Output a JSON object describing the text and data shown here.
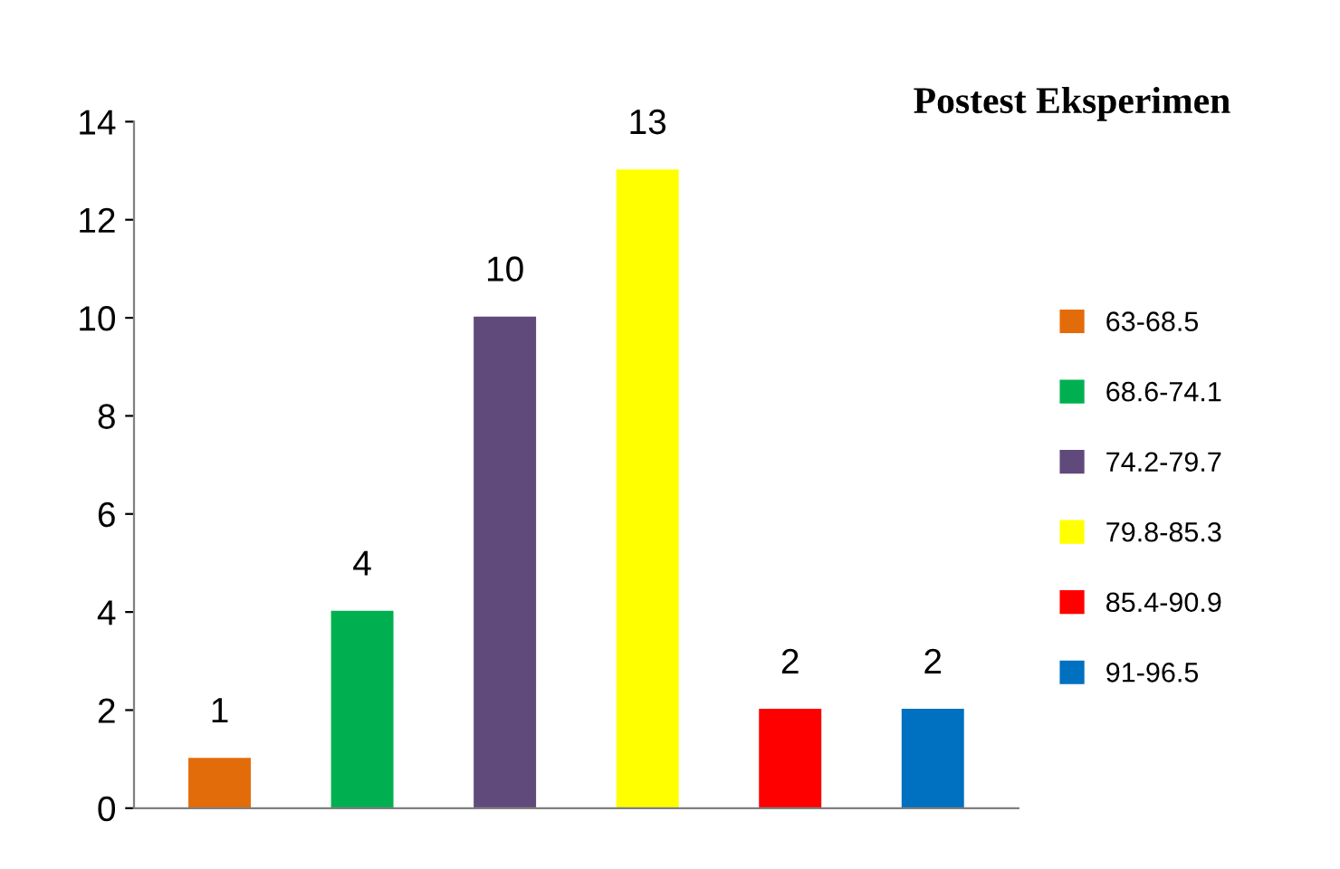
{
  "chart_data": {
    "type": "bar",
    "title": "Postest Eksperimen",
    "categories": [
      null,
      null,
      null,
      null,
      null,
      null
    ],
    "series": [
      {
        "name": "63-68.5",
        "color": "#e36c0a",
        "values": [
          1,
          null,
          null,
          null,
          null,
          null
        ]
      },
      {
        "name": "68.6-74.1",
        "color": "#00b050",
        "values": [
          null,
          4,
          null,
          null,
          null,
          null
        ]
      },
      {
        "name": "74.2-79.7",
        "color": "#604a7b",
        "values": [
          null,
          null,
          10,
          null,
          null,
          null
        ]
      },
      {
        "name": "79.8-85.3",
        "color": "#ffff00",
        "values": [
          null,
          null,
          null,
          13,
          null,
          null
        ]
      },
      {
        "name": "85.4-90.9",
        "color": "#ff0000",
        "values": [
          null,
          null,
          null,
          null,
          2,
          null
        ]
      },
      {
        "name": "91-96.5",
        "color": "#0070c0",
        "values": [
          null,
          null,
          null,
          null,
          null,
          2
        ]
      }
    ],
    "ylim": [
      0,
      14
    ],
    "yticks": [
      0,
      2,
      4,
      6,
      8,
      10,
      12,
      14
    ],
    "data_labels": true,
    "legend": "right",
    "grid": false
  }
}
